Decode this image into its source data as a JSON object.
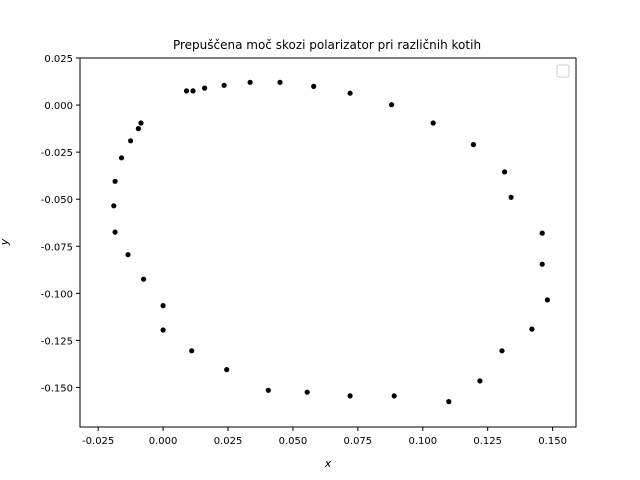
{
  "chart_data": {
    "type": "scatter",
    "title": "Prepuščena moč skozi polarizator pri različnih kotih",
    "xlabel": "x",
    "ylabel": "y",
    "xlim": [
      -0.032,
      0.159
    ],
    "ylim": [
      -0.171,
      0.025
    ],
    "xticks": [
      "-0.025",
      "0.000",
      "0.025",
      "0.050",
      "0.075",
      "0.100",
      "0.125",
      "0.150"
    ],
    "xtick_values": [
      -0.025,
      0.0,
      0.025,
      0.05,
      0.075,
      0.1,
      0.125,
      0.15
    ],
    "yticks": [
      "0.025",
      "0.000",
      "-0.025",
      "-0.050",
      "-0.075",
      "-0.100",
      "-0.125",
      "-0.150"
    ],
    "ytick_values": [
      0.025,
      0.0,
      -0.025,
      -0.05,
      -0.075,
      -0.1,
      -0.125,
      -0.15
    ],
    "legend": "top-right",
    "grid": false,
    "marker_color": "#000000",
    "series": [
      {
        "points": [
          [
            0.009,
            0.0075
          ],
          [
            0.0115,
            0.0075
          ],
          [
            0.016,
            0.009
          ],
          [
            0.0235,
            0.0105
          ],
          [
            0.0335,
            0.0121
          ],
          [
            0.045,
            0.0121
          ],
          [
            0.058,
            0.0099
          ],
          [
            0.072,
            0.0063
          ],
          [
            0.088,
            0.0002
          ],
          [
            0.104,
            -0.0095
          ],
          [
            0.1195,
            -0.021
          ],
          [
            0.1315,
            -0.0355
          ],
          [
            0.134,
            -0.049
          ],
          [
            0.146,
            -0.068
          ],
          [
            0.146,
            -0.0845
          ],
          [
            0.148,
            -0.1035
          ],
          [
            0.142,
            -0.119
          ],
          [
            0.1305,
            -0.1305
          ],
          [
            0.122,
            -0.1465
          ],
          [
            0.11,
            -0.1575
          ],
          [
            0.089,
            -0.1545
          ],
          [
            0.072,
            -0.1545
          ],
          [
            0.0555,
            -0.1525
          ],
          [
            0.0405,
            -0.1515
          ],
          [
            0.0245,
            -0.1405
          ],
          [
            0.011,
            -0.1305
          ],
          [
            0.0,
            -0.1195
          ],
          [
            0.0,
            -0.1065
          ],
          [
            -0.0075,
            -0.0925
          ],
          [
            -0.0135,
            -0.0795
          ],
          [
            -0.0185,
            -0.0675
          ],
          [
            -0.019,
            -0.0535
          ],
          [
            -0.0185,
            -0.0405
          ],
          [
            -0.016,
            -0.028
          ],
          [
            -0.0125,
            -0.019
          ],
          [
            -0.0095,
            -0.0125
          ],
          [
            -0.0085,
            -0.0095
          ]
        ]
      }
    ]
  }
}
